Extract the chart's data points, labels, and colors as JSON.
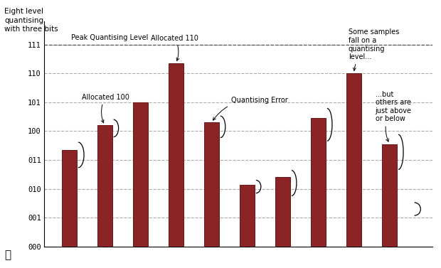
{
  "bars": [
    {
      "x": 1,
      "height": 3.35
    },
    {
      "x": 2,
      "height": 4.2
    },
    {
      "x": 3,
      "height": 5.0
    },
    {
      "x": 4,
      "height": 6.35
    },
    {
      "x": 5,
      "height": 4.3
    },
    {
      "x": 6,
      "height": 2.15
    },
    {
      "x": 7,
      "height": 2.4
    },
    {
      "x": 8,
      "height": 4.45
    },
    {
      "x": 9,
      "height": 6.0
    },
    {
      "x": 10,
      "height": 3.55
    }
  ],
  "bar_color": "#8B2525",
  "bar_edge_color": "#701515",
  "bar_width": 0.42,
  "yticks": [
    0,
    1,
    2,
    3,
    4,
    5,
    6,
    7
  ],
  "yticklabels": [
    "000",
    "001",
    "010",
    "011",
    "100",
    "101",
    "110",
    "111"
  ],
  "ylim": [
    0,
    7.8
  ],
  "xlim": [
    0.3,
    11.2
  ],
  "peak_quantising_level": 7,
  "peak_label": "Peak Quantising Level",
  "title_text": "Eight level\nquantising\nwith three bits",
  "grid_color": "#aaaaaa",
  "grid_style": "--",
  "background_color": "#ffffff"
}
